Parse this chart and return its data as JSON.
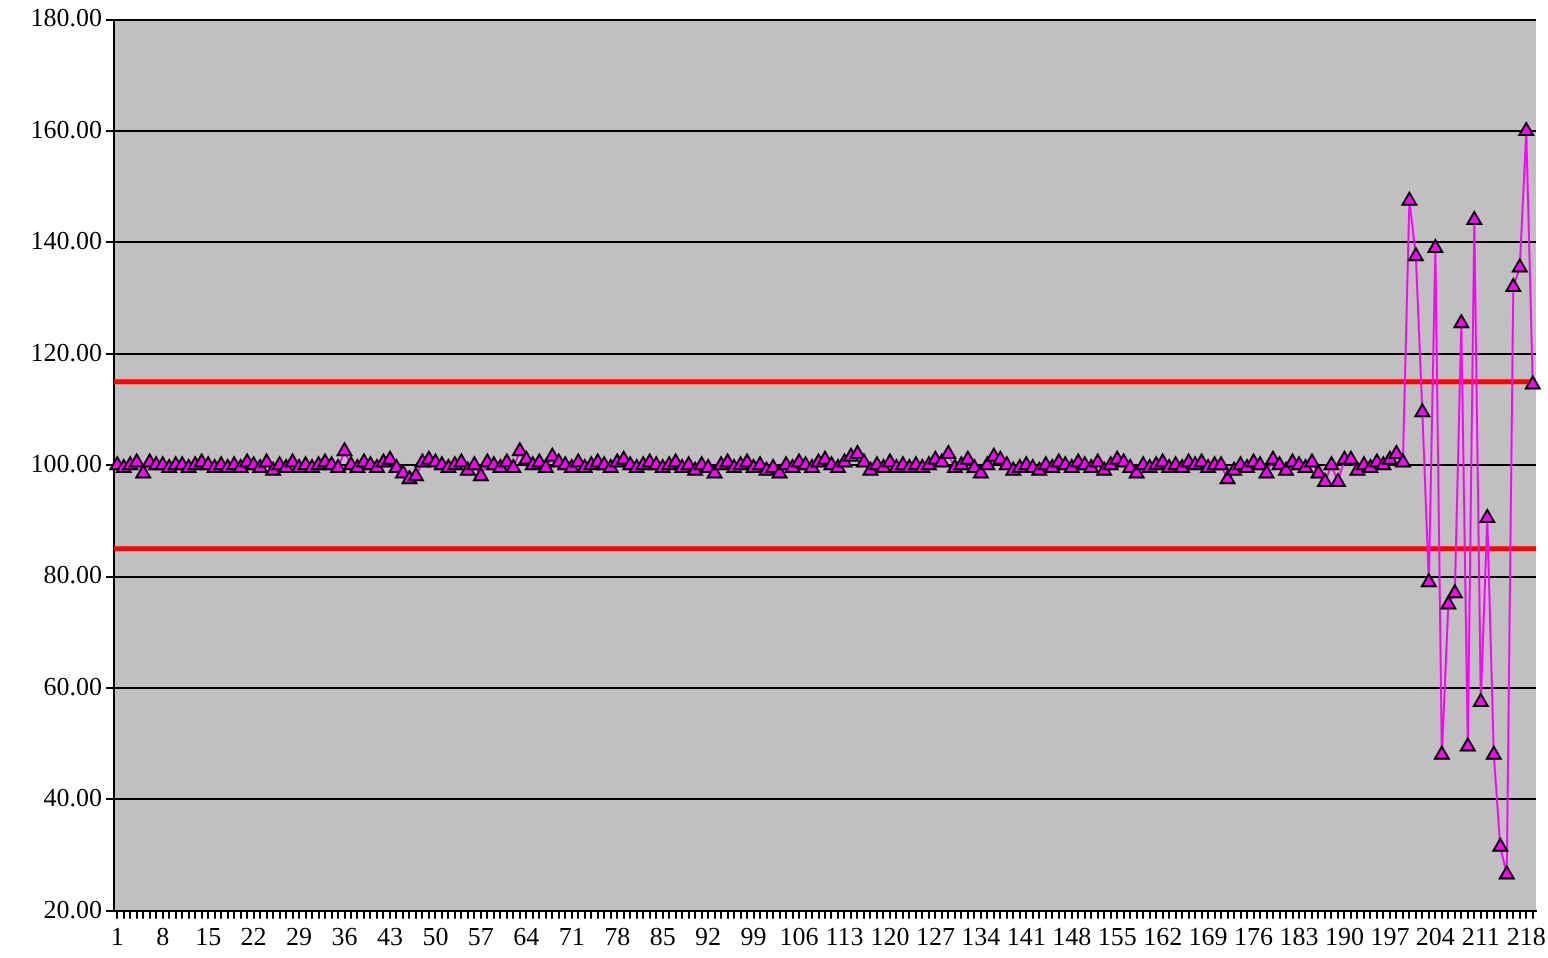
{
  "chart_data": {
    "type": "line",
    "categories": [
      "1",
      null,
      null,
      null,
      null,
      null,
      null,
      "8",
      null,
      null,
      null,
      null,
      null,
      null,
      "15",
      null,
      null,
      null,
      null,
      null,
      null,
      "22",
      null,
      null,
      null,
      null,
      null,
      null,
      "29",
      null,
      null,
      null,
      null,
      null,
      null,
      "36",
      null,
      null,
      null,
      null,
      null,
      null,
      "43",
      null,
      null,
      null,
      null,
      null,
      null,
      "50",
      null,
      null,
      null,
      null,
      null,
      null,
      "57",
      null,
      null,
      null,
      null,
      null,
      null,
      "64",
      null,
      null,
      null,
      null,
      null,
      null,
      "71",
      null,
      null,
      null,
      null,
      null,
      null,
      "78",
      null,
      null,
      null,
      null,
      null,
      null,
      "85",
      null,
      null,
      null,
      null,
      null,
      null,
      "92",
      null,
      null,
      null,
      null,
      null,
      null,
      "99",
      null,
      null,
      null,
      null,
      null,
      null,
      "106",
      null,
      null,
      null,
      null,
      null,
      null,
      "113",
      null,
      null,
      null,
      null,
      null,
      null,
      "120",
      null,
      null,
      null,
      null,
      null,
      null,
      "127",
      null,
      null,
      null,
      null,
      null,
      null,
      "134",
      null,
      null,
      null,
      null,
      null,
      null,
      "141",
      null,
      null,
      null,
      null,
      null,
      null,
      "148",
      null,
      null,
      null,
      null,
      null,
      null,
      "155",
      null,
      null,
      null,
      null,
      null,
      null,
      "162",
      null,
      null,
      null,
      null,
      null,
      null,
      "169",
      null,
      null,
      null,
      null,
      null,
      null,
      "176",
      null,
      null,
      null,
      null,
      null,
      null,
      "183",
      null,
      null,
      null,
      null,
      null,
      null,
      "190",
      null,
      null,
      null,
      null,
      null,
      null,
      "197",
      null,
      null,
      null,
      null,
      null,
      null,
      "204",
      null,
      null,
      null,
      null,
      null,
      null,
      "211",
      null,
      null,
      null,
      null,
      null,
      null,
      "218",
      null
    ],
    "series": [
      {
        "color": "#ff00ff",
        "values": [
          100,
          99.5,
          100,
          100.5,
          98.5,
          100.5,
          100,
          100,
          99.5,
          100,
          100,
          99.5,
          100,
          100.5,
          100,
          99.5,
          100,
          99.5,
          100,
          99.5,
          100.5,
          100,
          99.5,
          100.5,
          99,
          100,
          99.5,
          100.5,
          99.5,
          100,
          99.5,
          100,
          100.5,
          100,
          99.5,
          102.5,
          100,
          99.5,
          100.5,
          100,
          99.5,
          100.5,
          101,
          99.5,
          98.5,
          97.5,
          98,
          100.5,
          101,
          100.5,
          100,
          99.5,
          100,
          100.5,
          99,
          100,
          98,
          100.5,
          100,
          99.5,
          100.5,
          99.5,
          102.5,
          101,
          100,
          100.5,
          99.5,
          101.5,
          100.5,
          100,
          99.5,
          100.5,
          99.5,
          100,
          100.5,
          100,
          99.5,
          100.5,
          101,
          100,
          99.5,
          100,
          100.5,
          100,
          99.5,
          100,
          100.5,
          99.5,
          100,
          99,
          100,
          99.5,
          98.5,
          100,
          100.5,
          99.5,
          100,
          100.5,
          99.5,
          100,
          99,
          99.5,
          98.5,
          100,
          99.5,
          100.5,
          100,
          99.5,
          100.5,
          101,
          100,
          99.5,
          100.5,
          101.5,
          102,
          100.5,
          99,
          100,
          99.5,
          100.5,
          99.5,
          100,
          99.5,
          100,
          99.5,
          100,
          101,
          100.5,
          102,
          99.5,
          100,
          101,
          99.5,
          98.5,
          100,
          101.5,
          101,
          100,
          99,
          99.5,
          100,
          99.5,
          99,
          100,
          99.5,
          100.5,
          100,
          99.5,
          100.5,
          100,
          99.5,
          100.5,
          99,
          100,
          101,
          100.5,
          99.5,
          98.5,
          100,
          99.5,
          100,
          100.5,
          99.5,
          100,
          99.5,
          100.5,
          100,
          100.5,
          99.5,
          100,
          100,
          97.5,
          99,
          100,
          99.5,
          100.5,
          100,
          98.5,
          101,
          100,
          99,
          100.5,
          100,
          99.5,
          100.5,
          98.5,
          97,
          100,
          97,
          101,
          101,
          99,
          100,
          99.5,
          100.5,
          100,
          101,
          102,
          100.5,
          147.5,
          137.5,
          109.5,
          79,
          139,
          48,
          75,
          77,
          125.5,
          49.5,
          144,
          57.5,
          90.5,
          48,
          31.5,
          26.5,
          132,
          135.5,
          160,
          114.5
        ]
      }
    ],
    "ylim": [
      20,
      180
    ],
    "yticks": [
      {
        "value": 20,
        "label": "20.00"
      },
      {
        "value": 40,
        "label": "40.00"
      },
      {
        "value": 60,
        "label": "60.00"
      },
      {
        "value": 80,
        "label": "80.00"
      },
      {
        "value": 100,
        "label": "100.00"
      },
      {
        "value": 120,
        "label": "120.00"
      },
      {
        "value": 140,
        "label": "140.00"
      },
      {
        "value": 160,
        "label": "160.00"
      },
      {
        "value": 180,
        "label": "180.00"
      }
    ],
    "grid": "y",
    "legend": false,
    "marker": "triangle",
    "line_style": "solid",
    "ref_lines": [
      {
        "axis": "y",
        "value": 115,
        "color": "#ff0000"
      },
      {
        "axis": "y",
        "value": 85,
        "color": "#ff0000"
      }
    ]
  }
}
